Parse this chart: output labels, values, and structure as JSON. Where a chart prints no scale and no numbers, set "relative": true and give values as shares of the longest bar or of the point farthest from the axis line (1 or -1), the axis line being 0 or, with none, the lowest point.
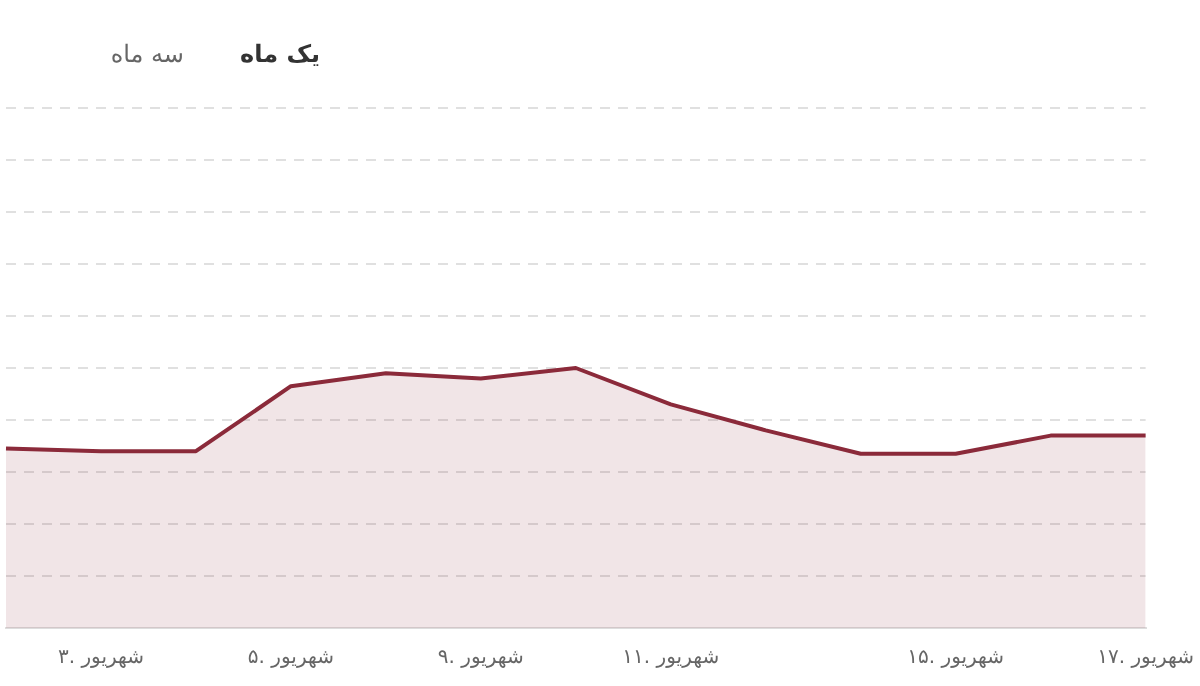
{
  "chart_data": {
    "type": "area",
    "relative": true,
    "categories": [
      null,
      "۳. شهریور",
      null,
      "۵. شهریور",
      null,
      "۹. شهریور",
      null,
      "۱۱. شهریور",
      null,
      null,
      "۱۵. شهریور",
      null,
      "۱۷. شهریور"
    ],
    "series": [
      {
        "color": "#8b2a3a",
        "values": [
          0.69,
          0.68,
          0.68,
          0.93,
          0.98,
          0.96,
          1,
          0.86,
          0.76,
          0.67,
          0.67,
          0.74,
          0.74
        ]
      }
    ],
    "annotations": [
      "یک ماه",
      "سه ماه"
    ],
    "grid": "y",
    "legend": false,
    "marker": "none",
    "line_style": "solid"
  }
}
